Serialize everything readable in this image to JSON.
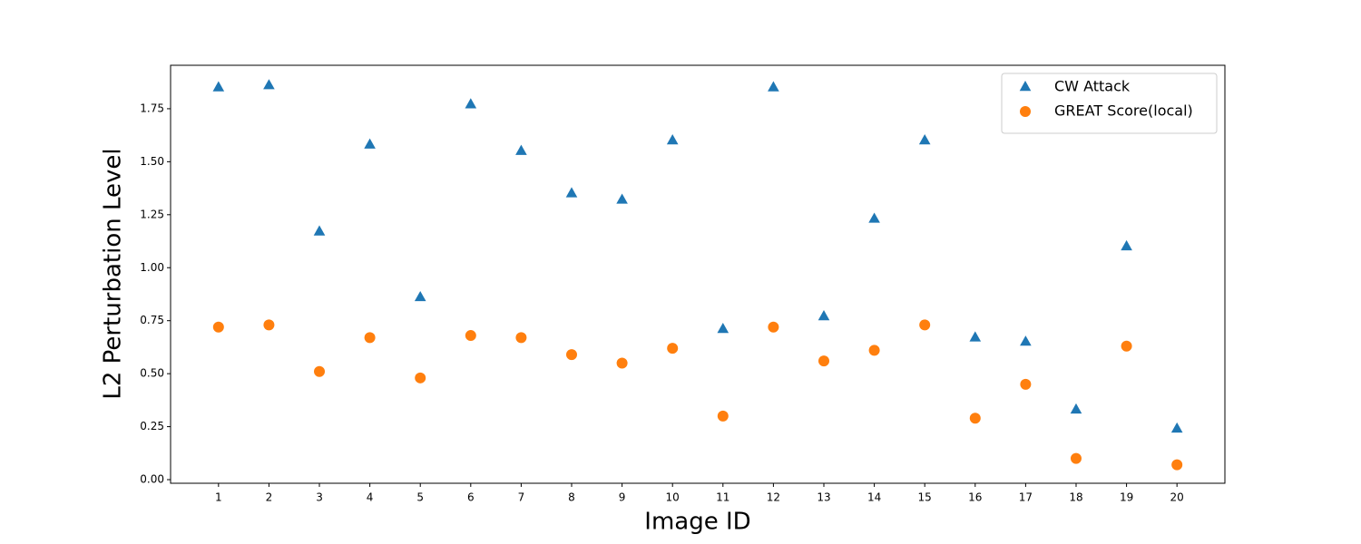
{
  "chart_data": {
    "type": "scatter",
    "x_label": "Image ID",
    "y_label": "L2 Perturbation Level",
    "x": [
      1,
      2,
      3,
      4,
      5,
      6,
      7,
      8,
      9,
      10,
      11,
      12,
      13,
      14,
      15,
      16,
      17,
      18,
      19,
      20
    ],
    "series": [
      {
        "name": "CW Attack",
        "color": "#1f77b4",
        "marker": "triangle",
        "values": [
          1.85,
          1.86,
          1.17,
          1.58,
          0.86,
          1.77,
          1.55,
          1.35,
          1.32,
          1.6,
          0.71,
          1.85,
          0.77,
          1.23,
          1.6,
          0.67,
          0.65,
          0.33,
          1.1,
          0.24
        ]
      },
      {
        "name": "GREAT Score(local)",
        "color": "#ff7f0e",
        "marker": "circle",
        "values": [
          0.72,
          0.73,
          0.51,
          0.67,
          0.48,
          0.68,
          0.67,
          0.59,
          0.55,
          0.62,
          0.3,
          0.72,
          0.56,
          0.61,
          0.73,
          0.29,
          0.45,
          0.1,
          0.63,
          0.07
        ]
      }
    ],
    "xlim": [
      0.05,
      20.95
    ],
    "xticks": [
      1,
      2,
      3,
      4,
      5,
      6,
      7,
      8,
      9,
      10,
      11,
      12,
      13,
      14,
      15,
      16,
      17,
      18,
      19,
      20
    ],
    "ylim": [
      -0.017,
      1.955
    ],
    "yticks": [
      {
        "value": 0,
        "label": "0.00"
      },
      {
        "value": 0.25,
        "label": "0.25"
      },
      {
        "value": 0.5,
        "label": "0.50"
      },
      {
        "value": 0.75,
        "label": "0.75"
      },
      {
        "value": 1,
        "label": "1.00"
      },
      {
        "value": 1.25,
        "label": "1.25"
      },
      {
        "value": 1.5,
        "label": "1.50"
      },
      {
        "value": 1.75,
        "label": "1.75"
      }
    ],
    "grid": false,
    "legend": "upper right"
  }
}
